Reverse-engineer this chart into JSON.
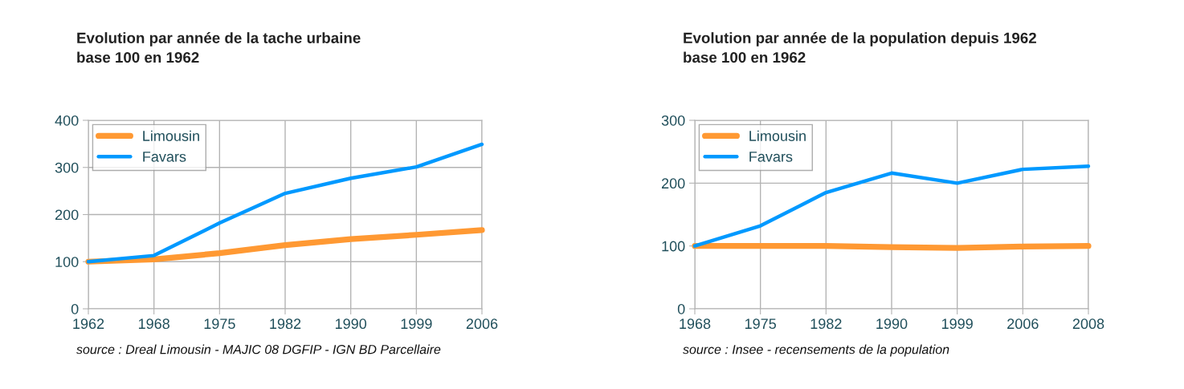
{
  "chart_data": [
    {
      "type": "line",
      "title": "Evolution par année de la tache urbaine\nbase 100 en 1962",
      "categories": [
        "1962",
        "1968",
        "1975",
        "1982",
        "1990",
        "1999",
        "2006"
      ],
      "series": [
        {
          "name": "Limousin",
          "color": "#ff9933",
          "values": [
            100,
            105,
            118,
            135,
            148,
            157,
            167
          ]
        },
        {
          "name": "Favars",
          "color": "#0099ff",
          "values": [
            100,
            113,
            182,
            245,
            277,
            301,
            349
          ]
        }
      ],
      "ylim": [
        0,
        400
      ],
      "yticks": [
        0,
        100,
        200,
        300,
        400
      ],
      "grid": true,
      "legend": "top left",
      "annotations": [
        "source : Dreal Limousin - MAJIC 08 DGFIP - IGN BD Parcellaire"
      ]
    },
    {
      "type": "line",
      "title": "Evolution par année de la population depuis 1962\nbase 100 en 1962",
      "categories": [
        "1968",
        "1975",
        "1982",
        "1990",
        "1999",
        "2006",
        "2008"
      ],
      "series": [
        {
          "name": "Limousin",
          "color": "#ff9933",
          "values": [
            100,
            100,
            100,
            98,
            97,
            99,
            100
          ]
        },
        {
          "name": "Favars",
          "color": "#0099ff",
          "values": [
            100,
            132,
            185,
            216,
            200,
            222,
            227
          ]
        }
      ],
      "ylim": [
        0,
        300
      ],
      "yticks": [
        0,
        100,
        200,
        300
      ],
      "grid": true,
      "legend": "top left",
      "annotations": [
        "source : Insee - recensements de la population"
      ]
    }
  ]
}
